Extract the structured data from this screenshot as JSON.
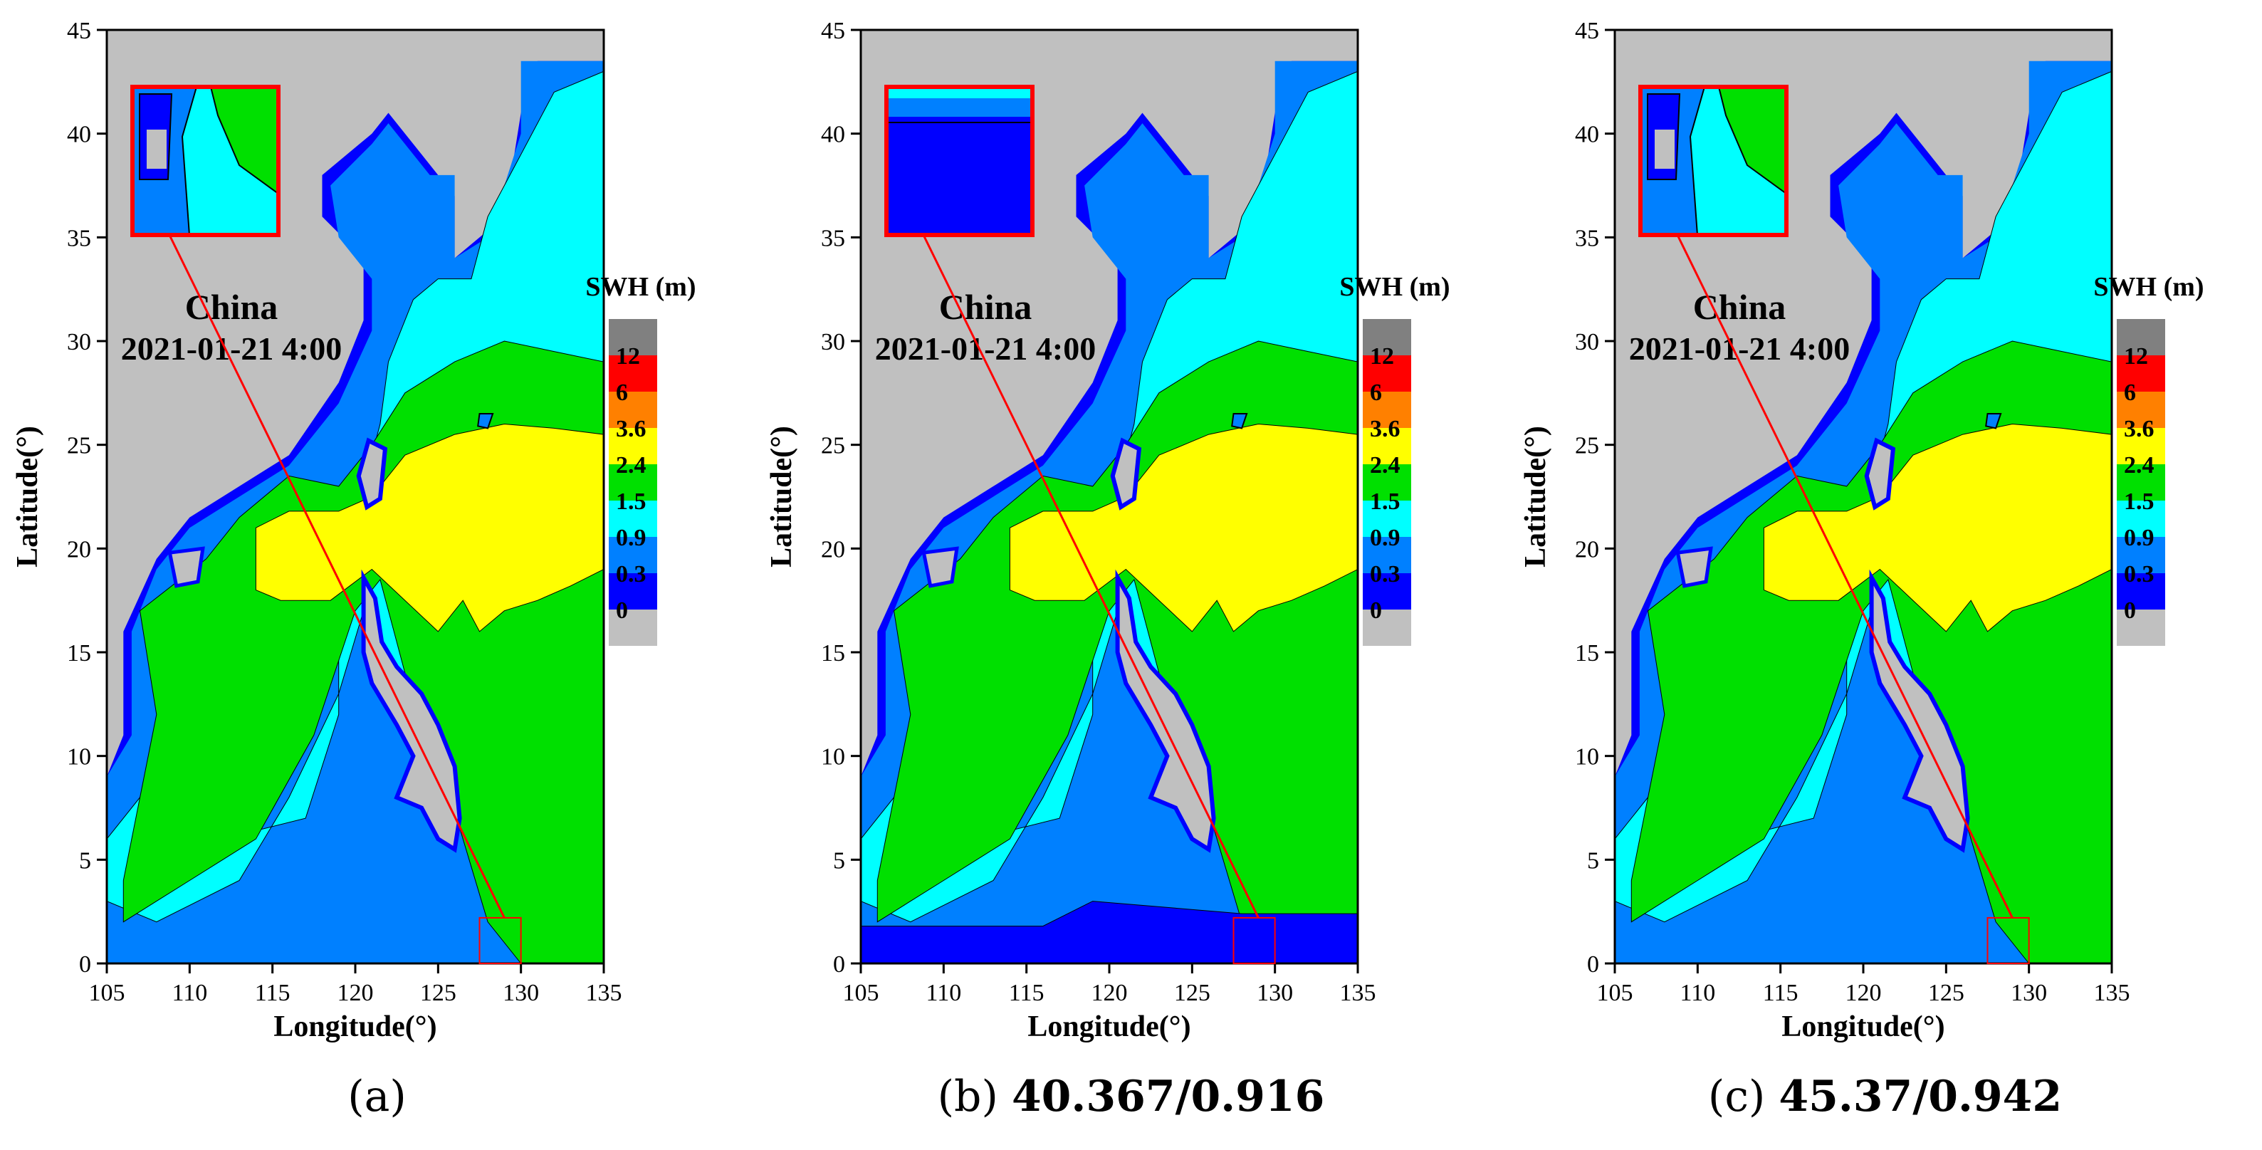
{
  "panels": [
    {
      "id": "a",
      "label": "(a)",
      "metric": "",
      "place": "China",
      "datetime": "2021-01-21 4:00"
    },
    {
      "id": "b",
      "label": "(b)",
      "metric": "40.367/0.916",
      "place": "China",
      "datetime": "2021-01-21 4:00"
    },
    {
      "id": "c",
      "label": "(c)",
      "metric": "45.37/0.942",
      "place": "China",
      "datetime": "2021-01-21 4:00"
    }
  ],
  "axes": {
    "xlabel": "Longitude(°)",
    "ylabel": "Latitude(°)",
    "xticks": [
      "105",
      "110",
      "115",
      "120",
      "125",
      "130",
      "135"
    ],
    "yticks": [
      "0",
      "5",
      "10",
      "15",
      "20",
      "25",
      "30",
      "35",
      "40",
      "45"
    ],
    "xlim": [
      105,
      135
    ],
    "ylim": [
      0,
      45
    ]
  },
  "colorbar": {
    "title": "SWH (m)",
    "levels": [
      "12",
      "6",
      "3.6",
      "2.4",
      "1.5",
      "0.9",
      "0.3",
      "0"
    ],
    "colors": [
      "#808080",
      "#ff0000",
      "#ff8000",
      "#ffff00",
      "#00e000",
      "#00ffff",
      "#0080ff",
      "#0000ff",
      "#c0c0c0"
    ]
  },
  "colors": {
    "land": "#c0c0c0",
    "marker": "#ff0000"
  }
}
